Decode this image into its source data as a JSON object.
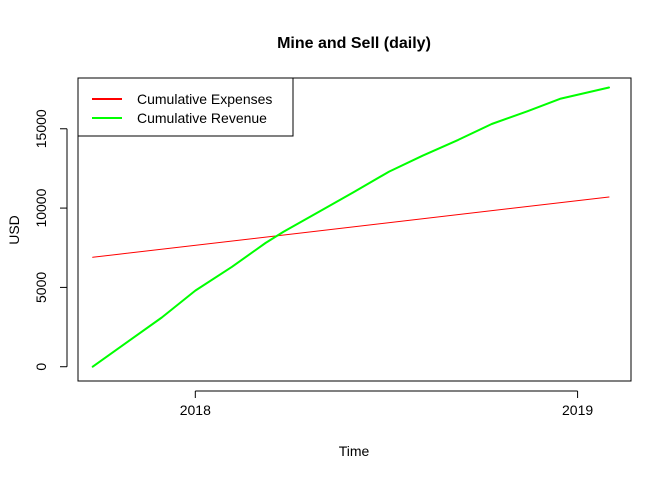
{
  "chart_data": {
    "type": "line",
    "title": "Mine and Sell (daily)",
    "xlabel": "Time",
    "ylabel": "USD",
    "x_tick_labels": [
      {
        "value": "2018-01-01",
        "label": "2018"
      },
      {
        "value": "2019-01-01",
        "label": "2019"
      }
    ],
    "y_ticks": [
      0,
      5000,
      10000,
      15000
    ],
    "y_tick_labels": [
      "0",
      "5000",
      "10000",
      "15000"
    ],
    "xlim": [
      "2017-09-11",
      "2019-02-21"
    ],
    "ylim": [
      -900,
      18200
    ],
    "legend_position": "top-left",
    "grid": false,
    "series": [
      {
        "name": "Cumulative Expenses",
        "color": "#ff0000",
        "line_width": 1,
        "points": [
          {
            "x": "2017-09-25",
            "y": 6900
          },
          {
            "x": "2019-01-31",
            "y": 10700
          }
        ]
      },
      {
        "name": "Cumulative Revenue",
        "color": "#00ff00",
        "line_width": 2,
        "points": [
          {
            "x": "2017-09-25",
            "y": 0
          },
          {
            "x": "2017-10-29",
            "y": 1600
          },
          {
            "x": "2017-11-30",
            "y": 3100
          },
          {
            "x": "2018-01-01",
            "y": 4800
          },
          {
            "x": "2018-02-05",
            "y": 6300
          },
          {
            "x": "2018-03-09",
            "y": 7800
          },
          {
            "x": "2018-03-26",
            "y": 8500
          },
          {
            "x": "2018-04-30",
            "y": 9800
          },
          {
            "x": "2018-06-01",
            "y": 11000
          },
          {
            "x": "2018-07-05",
            "y": 12300
          },
          {
            "x": "2018-08-06",
            "y": 13300
          },
          {
            "x": "2018-09-09",
            "y": 14300
          },
          {
            "x": "2018-10-11",
            "y": 15300
          },
          {
            "x": "2018-11-14",
            "y": 16100
          },
          {
            "x": "2018-12-16",
            "y": 16900
          },
          {
            "x": "2019-01-31",
            "y": 17600
          }
        ]
      }
    ]
  }
}
